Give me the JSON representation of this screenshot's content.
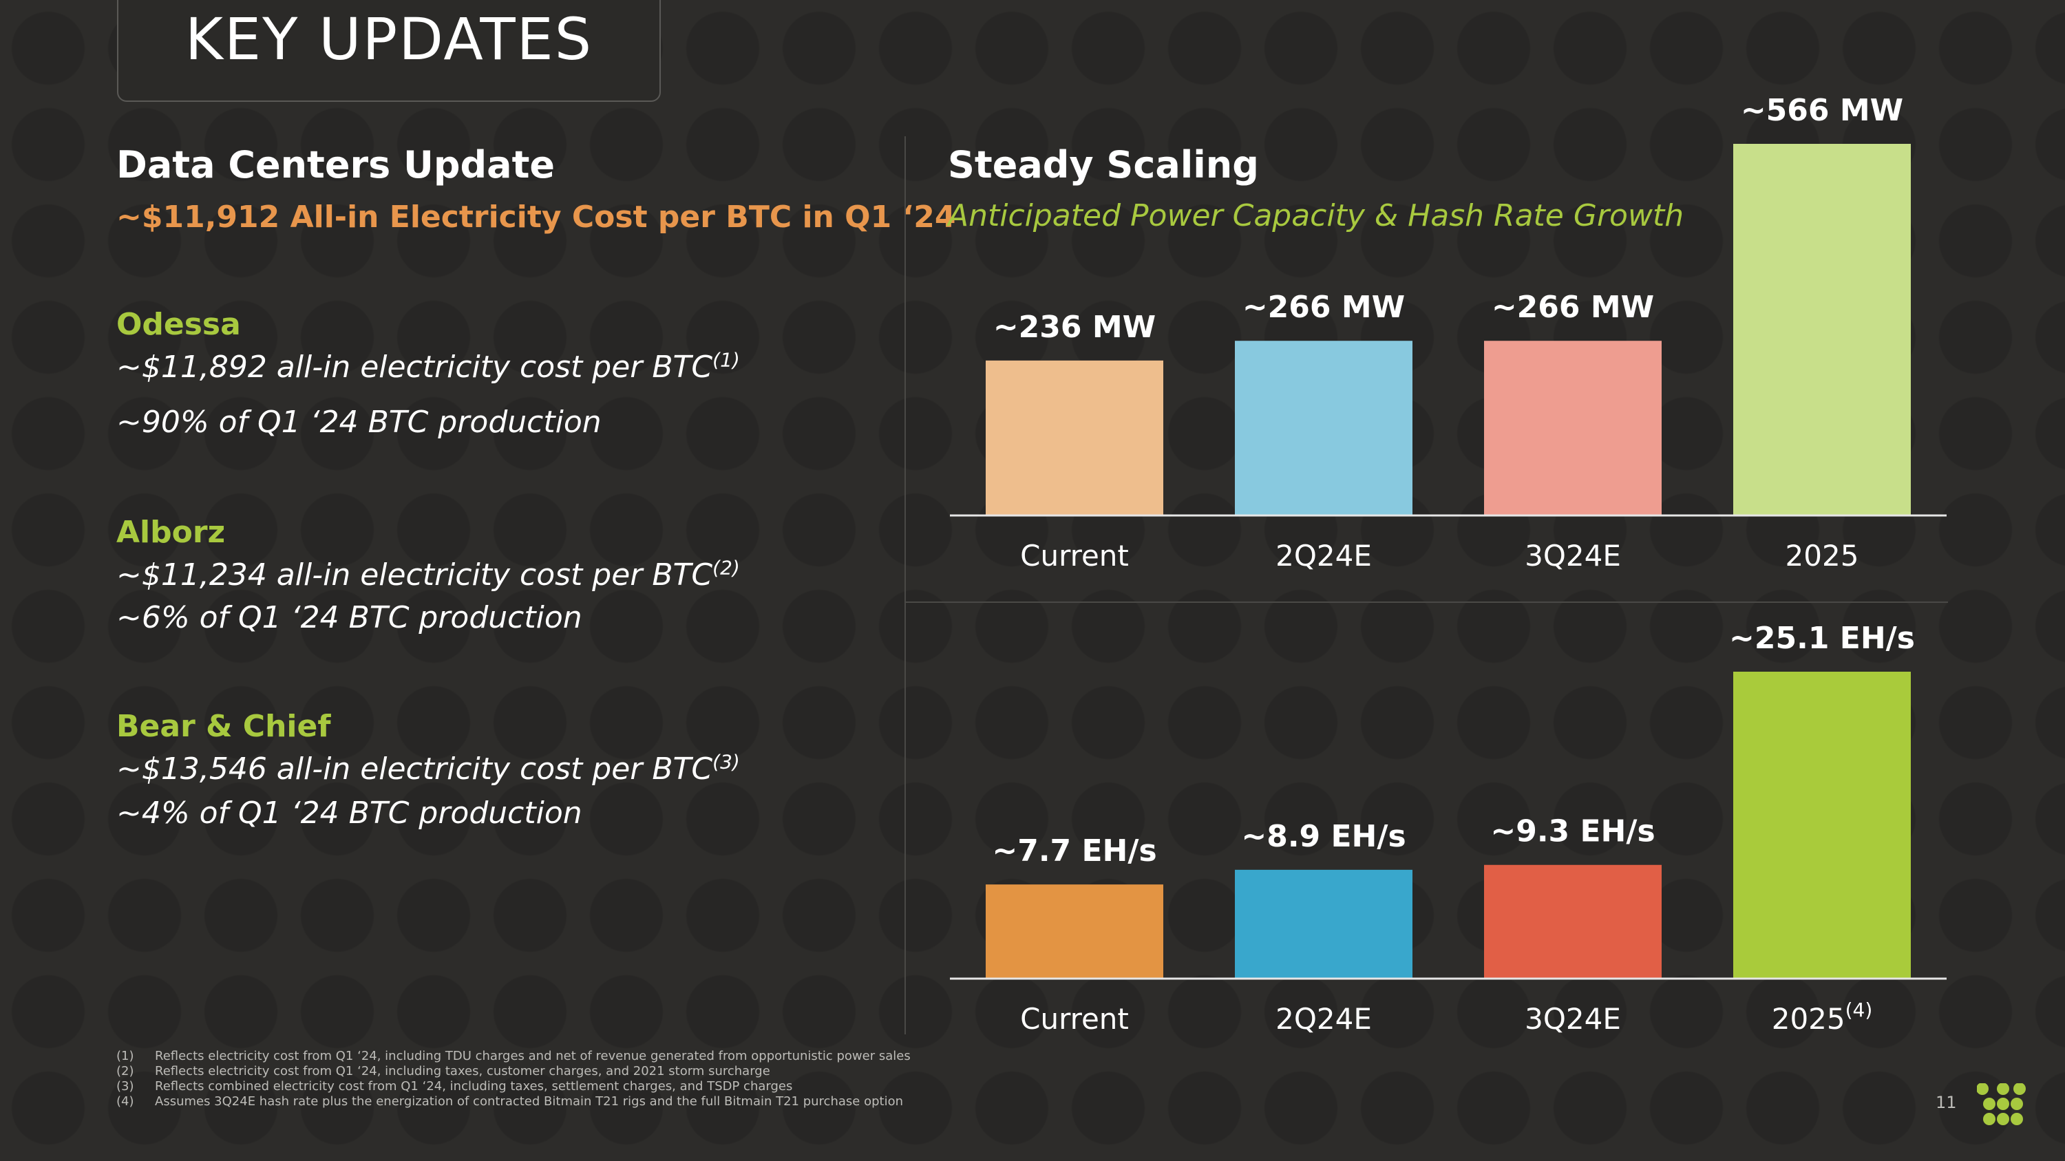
{
  "title": "KEY UPDATES",
  "left": {
    "heading": "Data Centers Update",
    "subheading": "~$11,912 All-in Electricity Cost per BTC in Q1 ‘24",
    "sites": [
      {
        "name": "Odessa",
        "cost_line": "~$11,892 all-in electricity cost per BTC",
        "cost_note": "(1)",
        "production_line": "~90% of Q1 ‘24 BTC production"
      },
      {
        "name": "Alborz",
        "cost_line": "~$11,234 all-in electricity cost per BTC",
        "cost_note": "(2)",
        "production_line": "~6% of Q1 ‘24 BTC production"
      },
      {
        "name": "Bear & Chief",
        "cost_line": "~$13,546 all-in electricity cost per BTC",
        "cost_note": "(3)",
        "production_line": "~4% of Q1 ‘24 BTC production"
      }
    ]
  },
  "right": {
    "heading": "Steady Scaling",
    "subheading": "Anticipated Power Capacity & Hash Rate Growth"
  },
  "chart_data": [
    {
      "type": "bar",
      "categories": [
        "Current",
        "2Q24E",
        "3Q24E",
        "2025"
      ],
      "category_notes": [
        "",
        "",
        "",
        ""
      ],
      "values": [
        236,
        266,
        266,
        566
      ],
      "unit": "MW",
      "data_labels": [
        "~236 MW",
        "~266 MW",
        "~266 MW",
        "~566 MW"
      ],
      "colors": [
        "#eebe8d",
        "#88c9df",
        "#ee9d90",
        "#c8df8a"
      ],
      "ylim": [
        0,
        600
      ],
      "title": "",
      "xlabel": "",
      "ylabel": "",
      "grid": false
    },
    {
      "type": "bar",
      "categories": [
        "Current",
        "2Q24E",
        "3Q24E",
        "2025"
      ],
      "category_notes": [
        "",
        "",
        "",
        "(4)"
      ],
      "values": [
        7.7,
        8.9,
        9.3,
        25.1
      ],
      "unit": "EH/s",
      "data_labels": [
        "~7.7 EH/s",
        "~8.9 EH/s",
        "~9.3 EH/s",
        "~25.1 EH/s"
      ],
      "colors": [
        "#e39443",
        "#39a7cc",
        "#e15f46",
        "#a9cb3b"
      ],
      "ylim": [
        0,
        26
      ],
      "title": "",
      "xlabel": "",
      "ylabel": "",
      "grid": false
    }
  ],
  "footnotes": [
    {
      "num": "(1)",
      "text": "Reflects electricity cost from Q1 ‘24, including TDU charges and net of revenue generated from opportunistic power sales"
    },
    {
      "num": "(2)",
      "text": "Reflects electricity cost from Q1 ‘24, including taxes, customer charges, and 2021 storm surcharge"
    },
    {
      "num": "(3)",
      "text": "Reflects combined electricity cost from Q1 ‘24, including taxes, settlement charges, and TSDP charges"
    },
    {
      "num": "(4)",
      "text": "Assumes 3Q24E hash rate plus the energization of contracted Bitmain T21 rigs and the full Bitmain T21 purchase option"
    }
  ],
  "page_number": "11",
  "logo_icon": "dot-grid-logo-icon",
  "logo_color": "#a8c93f"
}
